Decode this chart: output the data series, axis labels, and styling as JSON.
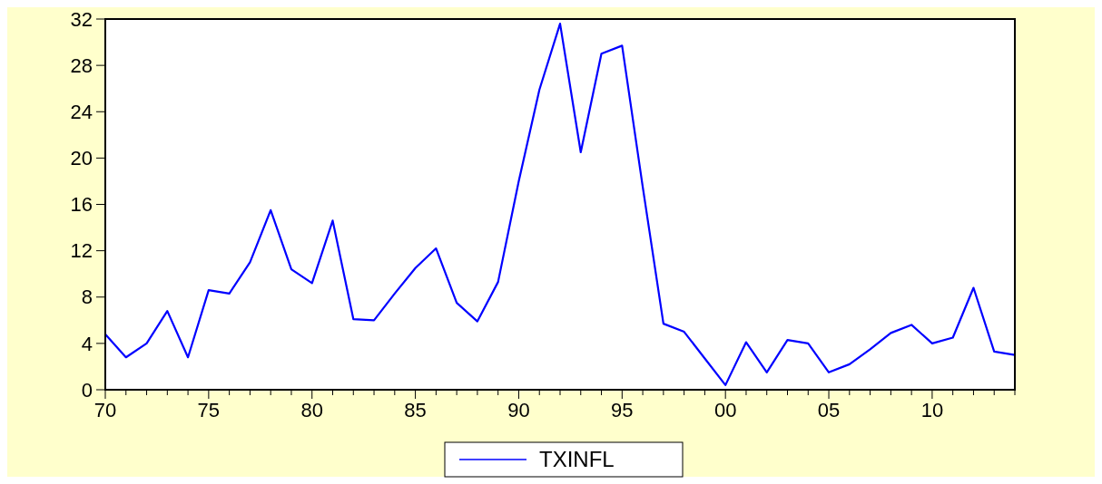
{
  "chart_data": {
    "type": "line",
    "x": [
      1970,
      1971,
      1972,
      1973,
      1974,
      1975,
      1976,
      1977,
      1978,
      1979,
      1980,
      1981,
      1982,
      1983,
      1984,
      1985,
      1986,
      1987,
      1988,
      1989,
      1990,
      1991,
      1992,
      1993,
      1994,
      1995,
      1996,
      1997,
      1998,
      1999,
      2000,
      2001,
      2002,
      2003,
      2004,
      2005,
      2006,
      2007,
      2008,
      2009,
      2010,
      2011,
      2012,
      2013,
      2014
    ],
    "series": [
      {
        "name": "TXINFL",
        "color": "#0000ff",
        "values": [
          4.8,
          2.8,
          4.0,
          6.8,
          2.8,
          8.6,
          8.3,
          11.0,
          15.5,
          10.4,
          9.2,
          14.6,
          6.1,
          6.0,
          8.3,
          10.5,
          12.2,
          7.5,
          5.9,
          9.3,
          18.0,
          25.9,
          31.6,
          20.5,
          29.0,
          29.7,
          17.5,
          5.7,
          5.0,
          2.7,
          0.4,
          4.1,
          1.5,
          4.3,
          4.0,
          1.5,
          2.2,
          3.5,
          4.9,
          5.6,
          4.0,
          4.5,
          8.8,
          3.3,
          3.0
        ]
      }
    ],
    "xlim": [
      1970,
      2014
    ],
    "xticks": [
      {
        "value": 1970,
        "label": "70"
      },
      {
        "value": 1971,
        "label": null
      },
      {
        "value": 1972,
        "label": null
      },
      {
        "value": 1973,
        "label": null
      },
      {
        "value": 1974,
        "label": null
      },
      {
        "value": 1975,
        "label": "75"
      },
      {
        "value": 1976,
        "label": null
      },
      {
        "value": 1977,
        "label": null
      },
      {
        "value": 1978,
        "label": null
      },
      {
        "value": 1979,
        "label": null
      },
      {
        "value": 1980,
        "label": "80"
      },
      {
        "value": 1981,
        "label": null
      },
      {
        "value": 1982,
        "label": null
      },
      {
        "value": 1983,
        "label": null
      },
      {
        "value": 1984,
        "label": null
      },
      {
        "value": 1985,
        "label": "85"
      },
      {
        "value": 1986,
        "label": null
      },
      {
        "value": 1987,
        "label": null
      },
      {
        "value": 1988,
        "label": null
      },
      {
        "value": 1989,
        "label": null
      },
      {
        "value": 1990,
        "label": "90"
      },
      {
        "value": 1991,
        "label": null
      },
      {
        "value": 1992,
        "label": null
      },
      {
        "value": 1993,
        "label": null
      },
      {
        "value": 1994,
        "label": null
      },
      {
        "value": 1995,
        "label": "95"
      },
      {
        "value": 1996,
        "label": null
      },
      {
        "value": 1997,
        "label": null
      },
      {
        "value": 1998,
        "label": null
      },
      {
        "value": 1999,
        "label": null
      },
      {
        "value": 2000,
        "label": "00"
      },
      {
        "value": 2001,
        "label": null
      },
      {
        "value": 2002,
        "label": null
      },
      {
        "value": 2003,
        "label": null
      },
      {
        "value": 2004,
        "label": null
      },
      {
        "value": 2005,
        "label": "05"
      },
      {
        "value": 2006,
        "label": null
      },
      {
        "value": 2007,
        "label": null
      },
      {
        "value": 2008,
        "label": null
      },
      {
        "value": 2009,
        "label": null
      },
      {
        "value": 2010,
        "label": "10"
      },
      {
        "value": 2011,
        "label": null
      },
      {
        "value": 2012,
        "label": null
      },
      {
        "value": 2013,
        "label": null
      },
      {
        "value": 2014,
        "label": null
      }
    ],
    "ylim": [
      0,
      32
    ],
    "yticks": [
      0,
      4,
      8,
      12,
      16,
      20,
      24,
      28,
      32
    ],
    "grid": false,
    "legend": "bottom",
    "line_style": "solid"
  }
}
